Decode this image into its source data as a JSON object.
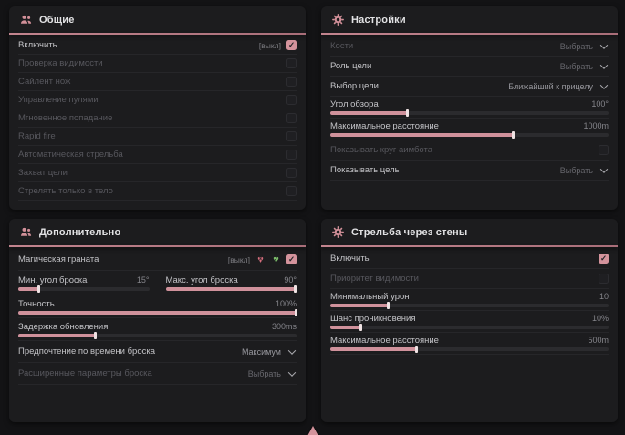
{
  "theme": {
    "accent": "#d4939c",
    "panel_bg": "#1c1c1e",
    "page_bg": "#131315",
    "green": "#7cbd6b"
  },
  "panels": [
    {
      "title": "Общие",
      "icon": "people-icon",
      "rows": [
        {
          "type": "toggle",
          "label": "Включить",
          "hint": "[выкл]",
          "checked": true,
          "dim": false
        },
        {
          "type": "toggle",
          "label": "Проверка видимости",
          "checked": false,
          "dim": true
        },
        {
          "type": "toggle",
          "label": "Сайлент нож",
          "checked": false,
          "dim": true
        },
        {
          "type": "toggle",
          "label": "Управление пулями",
          "checked": false,
          "dim": true
        },
        {
          "type": "toggle",
          "label": "Мгновенное попадание",
          "checked": false,
          "dim": true
        },
        {
          "type": "toggle",
          "label": "Rapid fire",
          "checked": false,
          "dim": true
        },
        {
          "type": "toggle",
          "label": "Автоматическая стрельба",
          "checked": false,
          "dim": true
        },
        {
          "type": "toggle",
          "label": "Захват цели",
          "checked": false,
          "dim": true
        },
        {
          "type": "toggle",
          "label": "Стрелять только в тело",
          "checked": false,
          "dim": true
        }
      ]
    },
    {
      "title": "Настройки",
      "icon": "gear-icon",
      "rows": [
        {
          "type": "dropdown",
          "label": "Кости",
          "value": "Выбрать",
          "dim": true,
          "value_bright": false
        },
        {
          "type": "dropdown",
          "label": "Роль цели",
          "value": "Выбрать",
          "dim": false,
          "value_bright": false
        },
        {
          "type": "dropdown",
          "label": "Выбор цели",
          "value": "Ближайший к прицелу",
          "dim": false,
          "value_bright": true
        },
        {
          "type": "slider",
          "label": "Угол обзора",
          "value": "100°",
          "fill": 28,
          "dim": false
        },
        {
          "type": "slider",
          "label": "Максимальное расстояние",
          "value": "1000m",
          "fill": 66,
          "dim": false
        },
        {
          "type": "toggle",
          "label": "Показывать круг аимбота",
          "checked": false,
          "dim": true
        },
        {
          "type": "dropdown",
          "label": "Показывать цель",
          "value": "Выбрать",
          "dim": false,
          "value_bright": false
        }
      ]
    },
    {
      "title": "Дополнительно",
      "icon": "people-icon",
      "rows": [
        {
          "type": "toggle",
          "label": "Магическая граната",
          "hint": "[выкл]",
          "checked": true,
          "dim": false,
          "icons": [
            "heart-x-icon",
            "heart-check-icon"
          ]
        },
        {
          "type": "slider2",
          "sliders": [
            {
              "label": "Мин. угол броска",
              "value": "15°",
              "fill": 16
            },
            {
              "label": "Макс. угол броска",
              "value": "90°",
              "fill": 99
            }
          ]
        },
        {
          "type": "slider",
          "label": "Точность",
          "value": "100%",
          "fill": 100,
          "dim": false
        },
        {
          "type": "slider",
          "label": "Задержка обновления",
          "value": "300ms",
          "fill": 28,
          "dim": false
        },
        {
          "type": "dropdown",
          "label": "Предпочтение по времени броска",
          "value": "Максимум",
          "dim": false,
          "value_bright": true
        },
        {
          "type": "dropdown",
          "label": "Расширенные параметры броска",
          "value": "Выбрать",
          "dim": true,
          "value_bright": false
        }
      ]
    },
    {
      "title": "Стрельба через стены",
      "icon": "gear-icon",
      "rows": [
        {
          "type": "toggle",
          "label": "Включить",
          "checked": true,
          "dim": false
        },
        {
          "type": "toggle",
          "label": "Приоритет видимости",
          "checked": false,
          "dim": true
        },
        {
          "type": "slider",
          "label": "Минимальный урон",
          "value": "10",
          "fill": 21,
          "dim": false
        },
        {
          "type": "slider",
          "label": "Шанс проникновения",
          "value": "10%",
          "fill": 11,
          "dim": false
        },
        {
          "type": "slider",
          "label": "Максимальное расстояние",
          "value": "500m",
          "fill": 31,
          "dim": false
        }
      ]
    }
  ]
}
